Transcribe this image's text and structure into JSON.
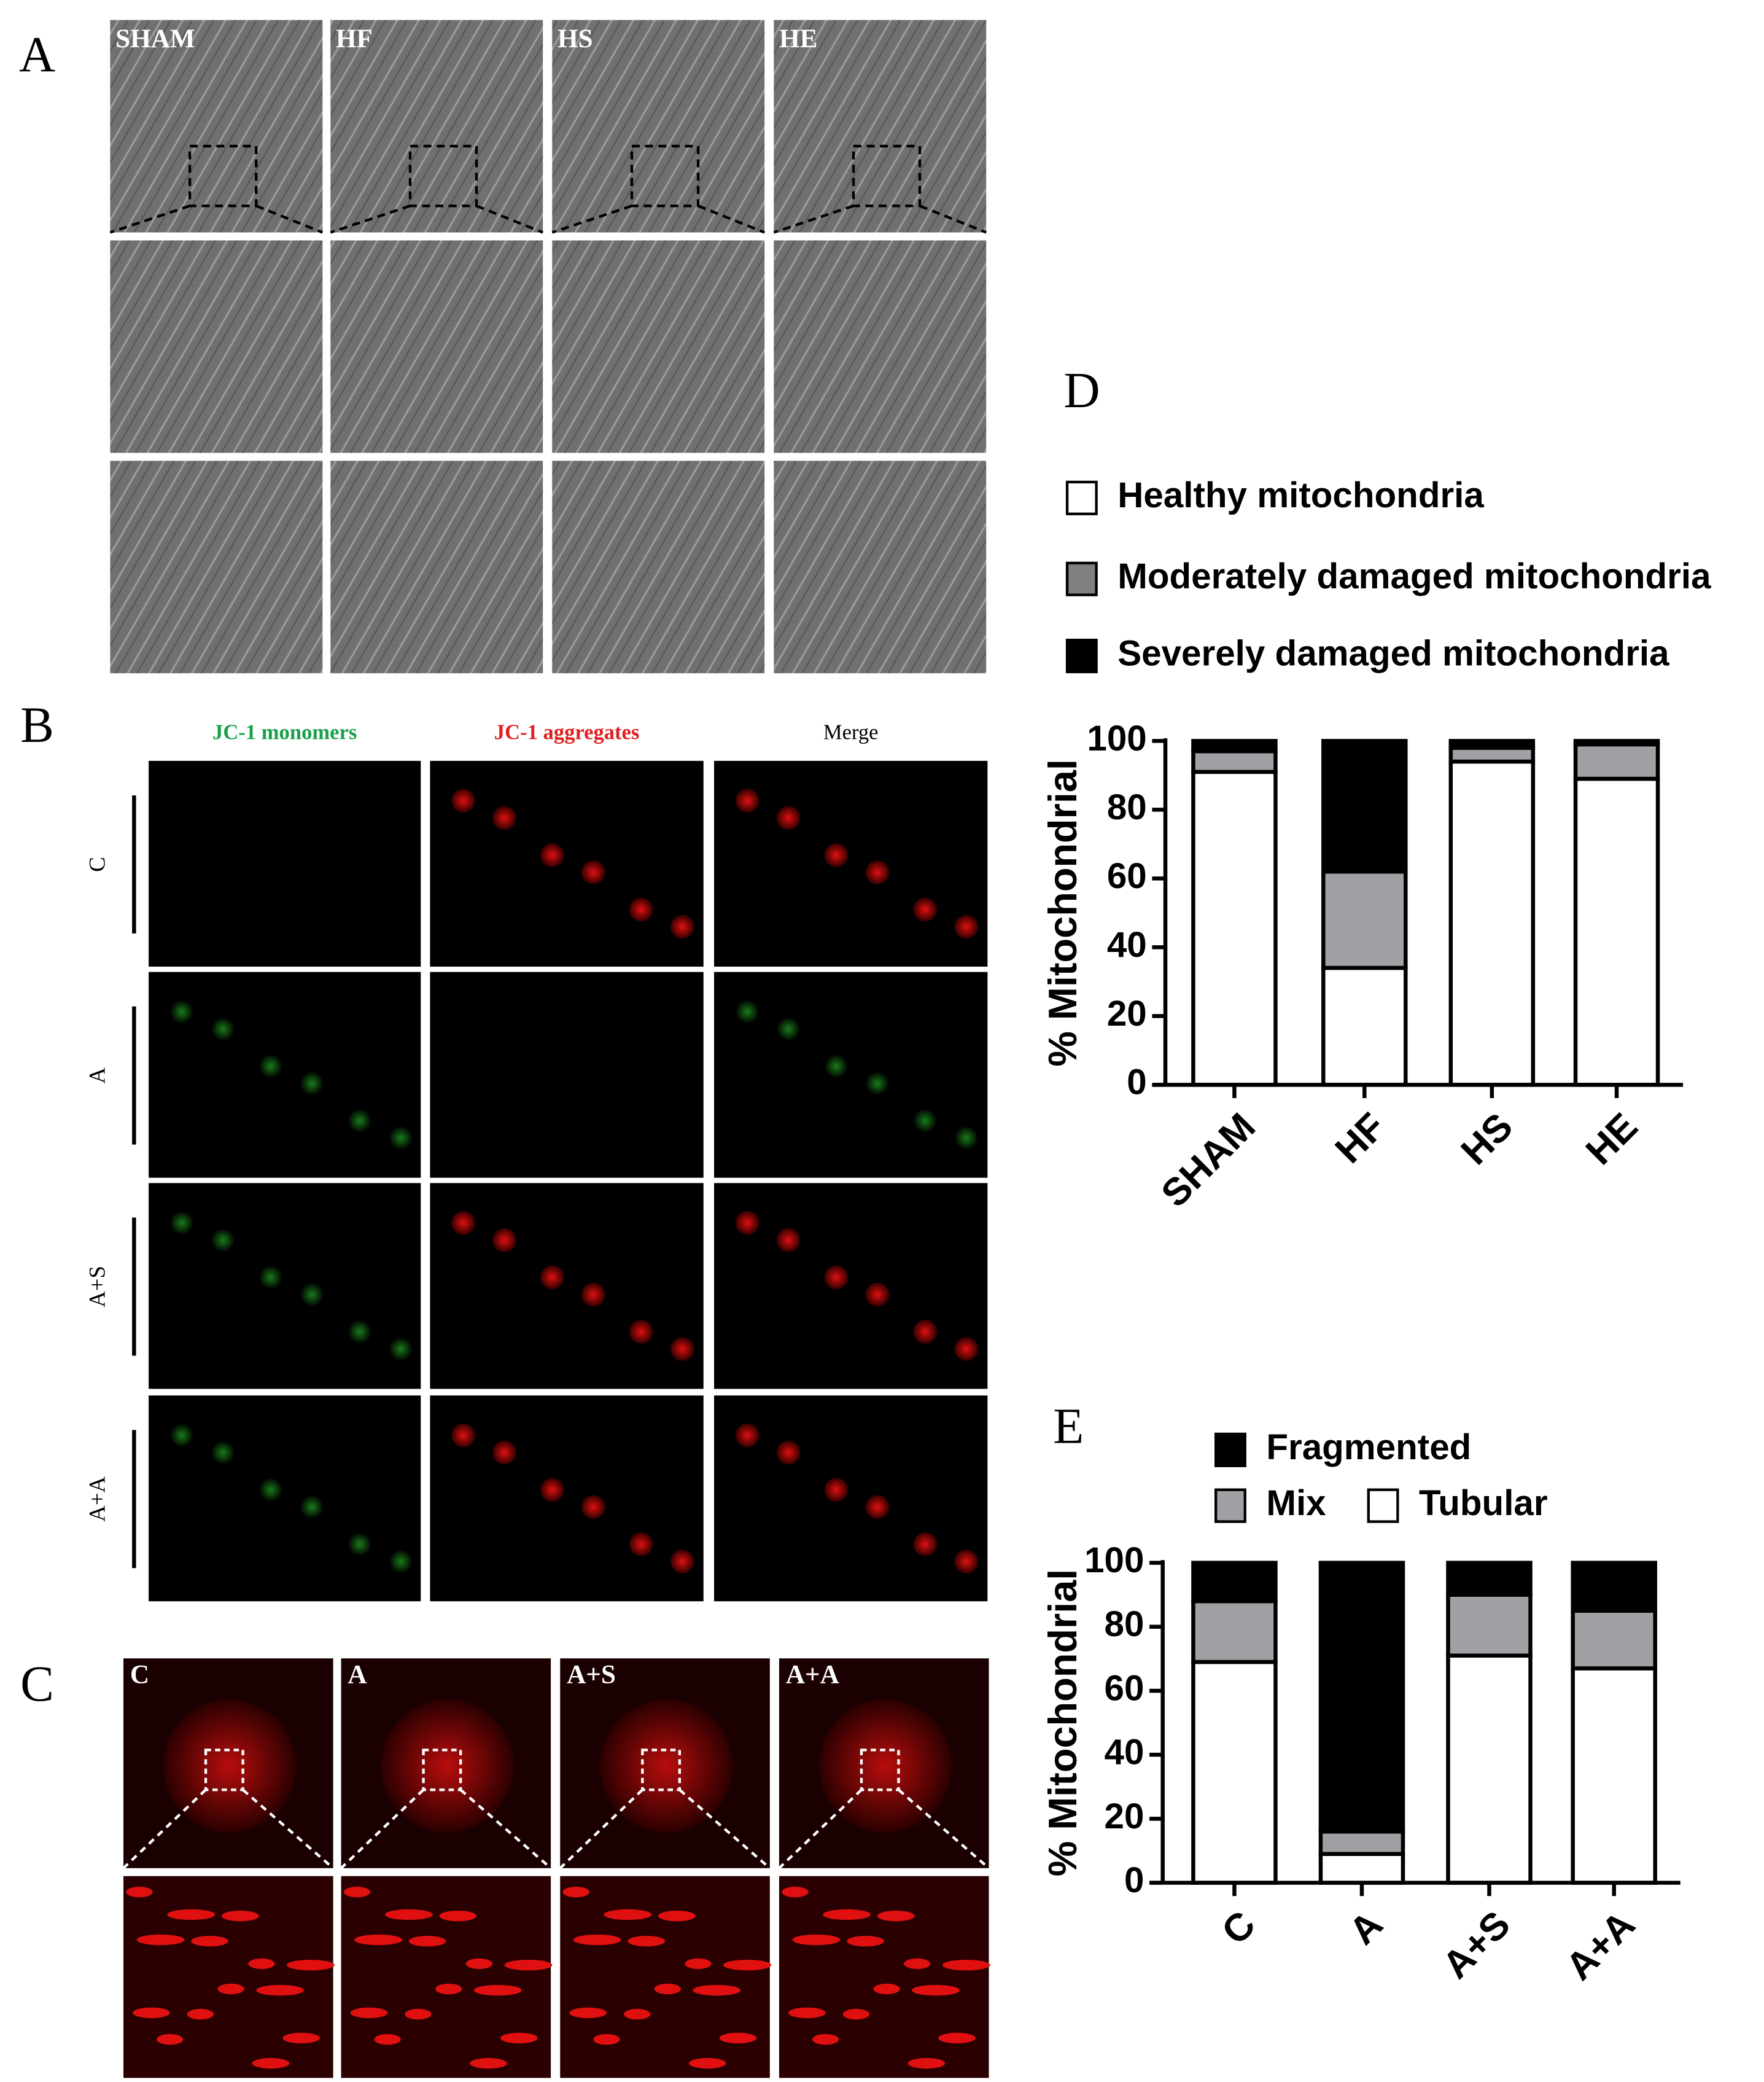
{
  "figure": {
    "panel_labels": [
      "A",
      "B",
      "C",
      "D",
      "E"
    ],
    "A": {
      "columns": [
        "SHAM",
        "HF",
        "HS",
        "HE"
      ]
    },
    "B": {
      "columns": [
        "JC-1 monomers",
        "JC-1 aggregates",
        "Merge"
      ],
      "rows": [
        "C",
        "A",
        "A+S",
        "A+A"
      ]
    },
    "C": {
      "columns": [
        "C",
        "A",
        "A+S",
        "A+A"
      ]
    }
  },
  "chart_data": [
    {
      "type": "bar",
      "stacked": true,
      "ylabel": "% Mitochondrial",
      "categories": [
        "SHAM",
        "HF",
        "HS",
        "HE"
      ],
      "series": [
        {
          "name": "Healthy mitochondria",
          "color": "#ffffff",
          "values": [
            91,
            34,
            94,
            89
          ]
        },
        {
          "name": "Moderately damaged mitochondria",
          "color": "#a0a0a4",
          "values": [
            6,
            28,
            4,
            10
          ]
        },
        {
          "name": "Severely damaged mitochondria",
          "color": "#000000",
          "values": [
            3,
            38,
            2,
            1
          ]
        }
      ],
      "ylim": [
        0,
        100
      ],
      "yticks": [
        0,
        20,
        40,
        60,
        80,
        100
      ]
    },
    {
      "type": "bar",
      "stacked": true,
      "ylabel": "% Mitochondrial",
      "categories": [
        "C",
        "A",
        "A+S",
        "A+A"
      ],
      "series": [
        {
          "name": "Tubular",
          "color": "#ffffff",
          "values": [
            69,
            9,
            71,
            67
          ]
        },
        {
          "name": "Mix",
          "color": "#a0a0a4",
          "values": [
            19,
            7,
            19,
            18
          ]
        },
        {
          "name": "Fragmented",
          "color": "#000000",
          "values": [
            12,
            84,
            10,
            15
          ]
        }
      ],
      "ylim": [
        0,
        100
      ],
      "yticks": [
        0,
        20,
        40,
        60,
        80,
        100
      ]
    }
  ]
}
